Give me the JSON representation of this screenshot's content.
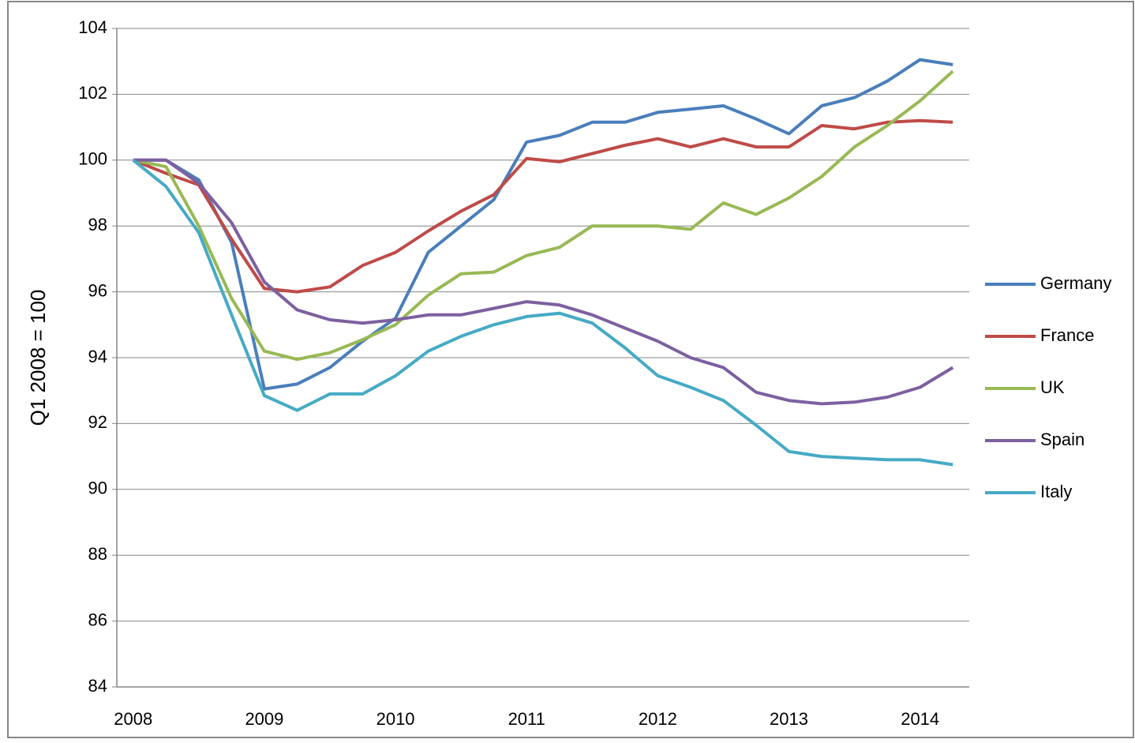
{
  "chart_data": {
    "type": "line",
    "y_label": "Q1 2008 = 100",
    "categories": [
      "2008",
      null,
      null,
      null,
      "2009",
      null,
      null,
      null,
      "2010",
      null,
      null,
      null,
      "2011",
      null,
      null,
      null,
      "2012",
      null,
      null,
      null,
      "2013",
      null,
      null,
      null,
      "2014",
      null
    ],
    "series": [
      {
        "name": "Germany",
        "color": "#4a7ebb",
        "values": [
          100,
          100,
          99.4,
          97.5,
          93.05,
          93.2,
          93.7,
          94.5,
          95.2,
          97.2,
          98.0,
          98.8,
          100.55,
          100.75,
          101.15,
          101.15,
          101.45,
          101.55,
          101.65,
          101.25,
          100.8,
          101.65,
          101.9,
          102.4,
          103.05,
          102.9
        ]
      },
      {
        "name": "France",
        "color": "#be4b48",
        "values": [
          100,
          99.6,
          99.25,
          97.6,
          96.1,
          96.0,
          96.15,
          96.8,
          97.2,
          97.85,
          98.45,
          98.95,
          100.05,
          99.95,
          100.2,
          100.45,
          100.65,
          100.4,
          100.65,
          100.4,
          100.4,
          101.05,
          100.95,
          101.15,
          101.2,
          101.15
        ]
      },
      {
        "name": "UK",
        "color": "#98b954",
        "values": [
          100,
          99.8,
          98.0,
          95.8,
          94.2,
          93.95,
          94.15,
          94.55,
          95.0,
          95.9,
          96.55,
          96.6,
          97.1,
          97.35,
          98.0,
          98.0,
          98.0,
          97.9,
          98.7,
          98.35,
          98.85,
          99.5,
          100.4,
          101.05,
          101.8,
          102.7
        ]
      },
      {
        "name": "Spain",
        "color": "#7d60a0",
        "values": [
          100,
          100,
          99.3,
          98.1,
          96.3,
          95.45,
          95.15,
          95.05,
          95.15,
          95.3,
          95.3,
          95.5,
          95.7,
          95.6,
          95.3,
          94.9,
          94.5,
          94.0,
          93.7,
          92.95,
          92.7,
          92.6,
          92.65,
          92.8,
          93.1,
          93.7
        ]
      },
      {
        "name": "Italy",
        "color": "#46aac5",
        "values": [
          100,
          99.2,
          97.8,
          95.3,
          92.85,
          92.4,
          92.9,
          92.9,
          93.45,
          94.2,
          94.65,
          95.0,
          95.25,
          95.35,
          95.05,
          94.3,
          93.45,
          93.1,
          92.7,
          91.95,
          91.15,
          91.0,
          90.95,
          90.9,
          90.9,
          90.75
        ]
      }
    ],
    "ylim": [
      84,
      104
    ],
    "yticks": [
      84,
      86,
      88,
      90,
      92,
      94,
      96,
      98,
      100,
      102,
      104
    ],
    "grid": true,
    "legend": "right"
  }
}
